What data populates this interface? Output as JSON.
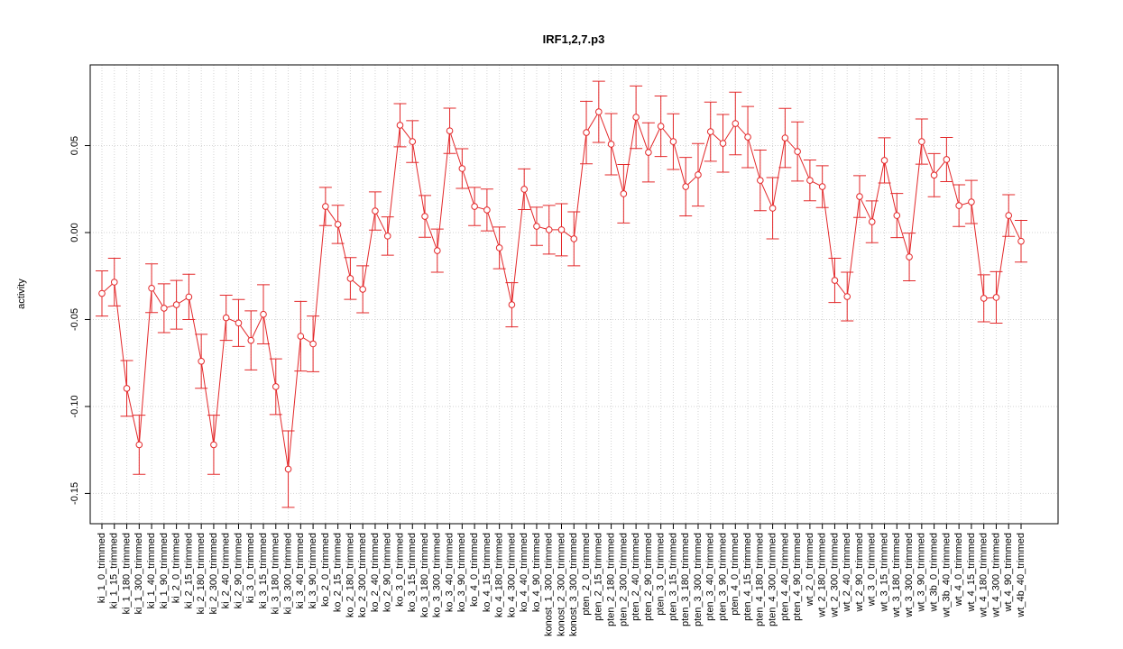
{
  "chart_data": {
    "type": "errorbar",
    "title": "IRF1,2,7.p3",
    "y_label": "activity",
    "color": "#e3282a",
    "grid": true,
    "ylim": [
      -0.1674,
      0.0964
    ],
    "yticks": [
      -0.15,
      {
        "value": -0.1,
        "label": "-0.10"
      },
      -0.05,
      {
        "value": 0,
        "label": "0.00"
      },
      0.05
    ],
    "categories": [
      "ki_1_0_trimmed",
      "ki_1_15_trimmed",
      "ki_1_180_trimmed",
      "ki_1_300_trimmed",
      "ki_1_40_trimmed",
      "ki_1_90_trimmed",
      "ki_2_0_trimmed",
      "ki_2_15_trimmed",
      "ki_2_180_trimmed",
      "ki_2_300_trimmed",
      "ki_2_40_trimmed",
      "ki_2_90_trimmed",
      "ki_3_0_trimmed",
      "ki_3_15_trimmed",
      "ki_3_180_trimmed",
      "ki_3_300_trimmed",
      "ki_3_40_trimmed",
      "ki_3_90_trimmed",
      "ko_2_0_trimmed",
      "ko_2_15_trimmed",
      "ko_2_180_trimmed",
      "ko_2_300_trimmed",
      "ko_2_40_trimmed",
      "ko_2_90_trimmed",
      "ko_3_0_trimmed",
      "ko_3_15_trimmed",
      "ko_3_180_trimmed",
      "ko_3_300_trimmed",
      "ko_3_40_trimmed",
      "ko_3_90_trimmed",
      "ko_4_0_trimmed",
      "ko_4_15_trimmed",
      "ko_4_180_trimmed",
      "ko_4_300_trimmed",
      "ko_4_40_trimmed",
      "ko_4_90_trimmed",
      "konost_1_300_trimmed",
      "konost_2_300_trimmed",
      "konost_3_300_trimmed",
      "pten_2_0_trimmed",
      "pten_2_15_trimmed",
      "pten_2_180_trimmed",
      "pten_2_300_trimmed",
      "pten_2_40_trimmed",
      "pten_2_90_trimmed",
      "pten_3_0_trimmed",
      "pten_3_15_trimmed",
      "pten_3_180_trimmed",
      "pten_3_300_trimmed",
      "pten_3_40_trimmed",
      "pten_3_90_trimmed",
      "pten_4_0_trimmed",
      "pten_4_15_trimmed",
      "pten_4_180_trimmed",
      "pten_4_300_trimmed",
      "pten_4_40_trimmed",
      "pten_4_90_trimmed",
      "wt_2_0_trimmed",
      "wt_2_180_trimmed",
      "wt_2_300_trimmed",
      "wt_2_40_trimmed",
      "wt_2_90_trimmed",
      "wt_3_0_trimmed",
      "wt_3_15_trimmed",
      "wt_3_180_trimmed",
      "wt_3_300_trimmed",
      "wt_3_90_trimmed",
      "wt_3b_0_trimmed",
      "wt_3b_40_trimmed",
      "wt_4_0_trimmed",
      "wt_4_15_trimmed",
      "wt_4_180_trimmed",
      "wt_4_300_trimmed",
      "wt_4_90_trimmed",
      "wt_4b_40_trimmed"
    ],
    "values": [
      -0.035,
      -0.0285,
      -0.0896,
      -0.122,
      -0.032,
      -0.0435,
      -0.0415,
      -0.037,
      -0.074,
      -0.122,
      -0.049,
      -0.052,
      -0.062,
      -0.047,
      -0.0886,
      -0.136,
      -0.0596,
      -0.064,
      0.015,
      0.0047,
      -0.0264,
      -0.0326,
      0.0124,
      -0.002,
      0.0617,
      0.0523,
      0.0093,
      -0.0104,
      0.0585,
      0.0368,
      0.015,
      0.013,
      -0.0088,
      -0.0415,
      0.0249,
      0.0036,
      0.0016,
      0.0016,
      -0.0036,
      0.0575,
      0.0694,
      0.0508,
      0.0223,
      0.0663,
      0.0461,
      0.0611,
      0.0523,
      0.0264,
      0.0332,
      0.058,
      0.0513,
      0.0627,
      0.0549,
      0.03,
      0.014,
      0.0544,
      0.0466,
      0.03,
      0.0264,
      -0.0275,
      -0.0368,
      0.0207,
      0.0062,
      0.0415,
      0.0098,
      -0.014,
      0.0523,
      0.033,
      0.042,
      0.0155,
      0.0176,
      -0.0378,
      -0.0373,
      0.0098,
      -0.005
    ],
    "errors": [
      0.013,
      0.0137,
      0.016,
      0.017,
      0.014,
      0.014,
      0.014,
      0.013,
      0.0155,
      0.017,
      0.013,
      0.0135,
      0.017,
      0.017,
      0.016,
      0.022,
      0.02,
      0.016,
      0.011,
      0.011,
      0.012,
      0.0135,
      0.011,
      0.011,
      0.0124,
      0.012,
      0.012,
      0.0124,
      0.013,
      0.0114,
      0.011,
      0.012,
      0.012,
      0.0127,
      0.0117,
      0.011,
      0.014,
      0.015,
      0.0155,
      0.018,
      0.0176,
      0.0176,
      0.0168,
      0.018,
      0.017,
      0.0174,
      0.016,
      0.0168,
      0.018,
      0.017,
      0.0166,
      0.018,
      0.0176,
      0.0174,
      0.0176,
      0.017,
      0.017,
      0.0117,
      0.012,
      0.0127,
      0.014,
      0.012,
      0.012,
      0.013,
      0.0127,
      0.0137,
      0.013,
      0.0124,
      0.0127,
      0.012,
      0.0124,
      0.0135,
      0.0148,
      0.012,
      0.012
    ]
  }
}
